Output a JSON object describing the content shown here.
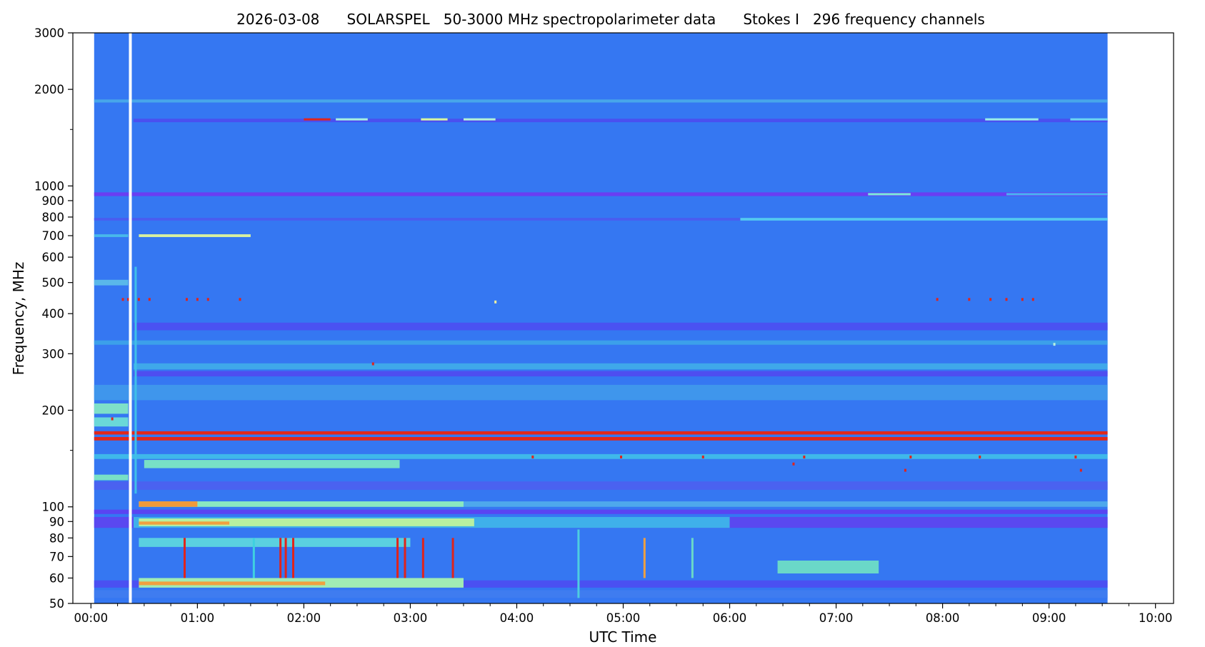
{
  "chart_data": {
    "type": "heatmap",
    "title": "2026-03-08      SOLARSPEL   50-3000 MHz spectropolarimeter data      Stokes I   296 frequency channels",
    "xlabel": "UTC Time",
    "ylabel": "Frequency, MHz",
    "x_axis": {
      "unit": "hours UTC",
      "range_hours": [
        -0.17,
        10.17
      ],
      "tick_hours": [
        0,
        1,
        2,
        3,
        4,
        5,
        6,
        7,
        8,
        9,
        10
      ],
      "tick_labels": [
        "00:00",
        "01:00",
        "02:00",
        "03:00",
        "04:00",
        "05:00",
        "06:00",
        "07:00",
        "08:00",
        "09:00",
        "10:00"
      ],
      "minor_step_hours": 0.25
    },
    "y_axis": {
      "scale": "log",
      "range_mhz": [
        50,
        3000
      ],
      "tick_values": [
        50,
        60,
        70,
        80,
        90,
        100,
        200,
        300,
        400,
        500,
        600,
        700,
        800,
        900,
        1000,
        2000,
        3000
      ],
      "tick_labels": [
        "50",
        "60",
        "70",
        "80",
        "90",
        "100",
        "200",
        "300",
        "400",
        "500",
        "600",
        "700",
        "800",
        "900",
        "1000",
        "2000",
        "3000"
      ],
      "minor_ticks": [
        150,
        1500
      ]
    },
    "data_extent": {
      "start_hours": 0.03,
      "end_hours": 9.55
    },
    "data_gap": {
      "at_hours": 0.37,
      "color": "#ffffff"
    },
    "colormap": "rainbow",
    "background_color": "#3577f2",
    "bands": [
      {
        "f_low": 1580,
        "f_high": 1620,
        "t_start": 0.4,
        "t_end": 9.55,
        "color": "#4a50f0"
      },
      {
        "f_low": 1600,
        "f_high": 1625,
        "t_start": 2.3,
        "t_end": 2.6,
        "color": "#a8f0e0"
      },
      {
        "f_low": 1600,
        "f_high": 1625,
        "t_start": 3.1,
        "t_end": 3.35,
        "color": "#d8f6a0"
      },
      {
        "f_low": 1600,
        "f_high": 1625,
        "t_start": 3.5,
        "t_end": 3.8,
        "color": "#b6f2d6"
      },
      {
        "f_low": 1600,
        "f_high": 1625,
        "t_start": 8.4,
        "t_end": 8.9,
        "color": "#9aeee8"
      },
      {
        "f_low": 1600,
        "f_high": 1625,
        "t_start": 9.2,
        "t_end": 9.55,
        "color": "#6cd6f2"
      },
      {
        "f_low": 1600,
        "f_high": 1625,
        "t_start": 2.0,
        "t_end": 2.25,
        "color": "#e0241c"
      },
      {
        "f_low": 1820,
        "f_high": 1860,
        "t_start": 0.03,
        "t_end": 9.55,
        "color": "#48a6ea"
      },
      {
        "f_low": 930,
        "f_high": 955,
        "t_start": 0.03,
        "t_end": 9.55,
        "color": "#6a3ef2"
      },
      {
        "f_low": 935,
        "f_high": 950,
        "t_start": 7.3,
        "t_end": 7.7,
        "color": "#7ce8d8"
      },
      {
        "f_low": 935,
        "f_high": 950,
        "t_start": 8.6,
        "t_end": 9.55,
        "color": "#48b4f0"
      },
      {
        "f_low": 780,
        "f_high": 795,
        "t_start": 0.03,
        "t_end": 9.55,
        "color": "#4a5cf0"
      },
      {
        "f_low": 780,
        "f_high": 795,
        "t_start": 6.1,
        "t_end": 9.55,
        "color": "#52caf0"
      },
      {
        "f_low": 693,
        "f_high": 707,
        "t_start": 0.03,
        "t_end": 0.35,
        "color": "#48b8ea"
      },
      {
        "f_low": 693,
        "f_high": 707,
        "t_start": 0.45,
        "t_end": 1.5,
        "color": "#d8f0a0"
      },
      {
        "f_low": 490,
        "f_high": 510,
        "t_start": 0.03,
        "t_end": 0.35,
        "color": "#5ab8ea"
      },
      {
        "f_low": 355,
        "f_high": 375,
        "t_start": 0.4,
        "t_end": 9.55,
        "color": "#4a52f2"
      },
      {
        "f_low": 320,
        "f_high": 330,
        "t_start": 0.03,
        "t_end": 9.55,
        "color": "#3ca0ea"
      },
      {
        "f_low": 268,
        "f_high": 280,
        "t_start": 0.4,
        "t_end": 9.55,
        "color": "#3fa8ea"
      },
      {
        "f_low": 255,
        "f_high": 265,
        "t_start": 0.4,
        "t_end": 9.55,
        "color": "#4e4ef0"
      },
      {
        "f_low": 215,
        "f_high": 240,
        "t_start": 0.03,
        "t_end": 9.55,
        "color": "#3f96ec"
      },
      {
        "f_low": 195,
        "f_high": 210,
        "t_start": 0.03,
        "t_end": 0.35,
        "color": "#7ee0c8"
      },
      {
        "f_low": 178,
        "f_high": 190,
        "t_start": 0.03,
        "t_end": 0.35,
        "color": "#6ad8d8"
      },
      {
        "f_low": 168,
        "f_high": 172,
        "t_start": 0.03,
        "t_end": 9.55,
        "color": "#e0281c"
      },
      {
        "f_low": 161,
        "f_high": 165,
        "t_start": 0.03,
        "t_end": 9.55,
        "color": "#e0281c"
      },
      {
        "f_low": 141,
        "f_high": 146,
        "t_start": 0.03,
        "t_end": 9.55,
        "color": "#3fb8ea"
      },
      {
        "f_low": 132,
        "f_high": 140,
        "t_start": 0.5,
        "t_end": 2.9,
        "color": "#78e0c6"
      },
      {
        "f_low": 121,
        "f_high": 126,
        "t_start": 0.03,
        "t_end": 0.35,
        "color": "#78e0c6"
      },
      {
        "f_low": 113,
        "f_high": 120,
        "t_start": 0.03,
        "t_end": 9.55,
        "color": "#4a62f0"
      },
      {
        "f_low": 100,
        "f_high": 104,
        "t_start": 0.45,
        "t_end": 9.55,
        "color": "#4ea8ec"
      },
      {
        "f_low": 100,
        "f_high": 104,
        "t_start": 0.45,
        "t_end": 3.5,
        "color": "#8ae8c0"
      },
      {
        "f_low": 100,
        "f_high": 104,
        "t_start": 0.45,
        "t_end": 1.0,
        "color": "#f09a3a"
      },
      {
        "f_low": 95,
        "f_high": 98,
        "t_start": 0.03,
        "t_end": 9.55,
        "color": "#5a44f2"
      },
      {
        "f_low": 86,
        "f_high": 93,
        "t_start": 0.03,
        "t_end": 9.55,
        "color": "#5a48f0"
      },
      {
        "f_low": 86,
        "f_high": 93,
        "t_start": 0.4,
        "t_end": 6.0,
        "color": "#3fb0ea"
      },
      {
        "f_low": 87,
        "f_high": 92,
        "t_start": 0.45,
        "t_end": 3.6,
        "color": "#b8f0a0"
      },
      {
        "f_low": 88,
        "f_high": 90,
        "t_start": 0.45,
        "t_end": 1.3,
        "color": "#f0a040"
      },
      {
        "f_low": 75,
        "f_high": 80,
        "t_start": 0.45,
        "t_end": 3.0,
        "color": "#5ad0e0"
      },
      {
        "f_low": 62,
        "f_high": 68,
        "t_start": 6.45,
        "t_end": 7.4,
        "color": "#6ad8c8"
      },
      {
        "f_low": 56,
        "f_high": 59,
        "t_start": 0.03,
        "t_end": 9.55,
        "color": "#4a50f2"
      },
      {
        "f_low": 56,
        "f_high": 60,
        "t_start": 0.45,
        "t_end": 3.5,
        "color": "#a0ecb4"
      },
      {
        "f_low": 57,
        "f_high": 58.5,
        "t_start": 0.45,
        "t_end": 2.2,
        "color": "#f0a040"
      },
      {
        "f_low": 52,
        "f_high": 55,
        "t_start": 0.03,
        "t_end": 9.55,
        "color": "#3f7cf0"
      }
    ],
    "bursts": [
      {
        "t": 0.88,
        "f_low": 60,
        "f_high": 80,
        "color": "#e0241c"
      },
      {
        "t": 1.53,
        "f_low": 60,
        "f_high": 80,
        "color": "#3fd0e0"
      },
      {
        "t": 1.78,
        "f_low": 60,
        "f_high": 80,
        "color": "#e0241c"
      },
      {
        "t": 1.83,
        "f_low": 60,
        "f_high": 80,
        "color": "#e0241c"
      },
      {
        "t": 1.9,
        "f_low": 60,
        "f_high": 80,
        "color": "#e0241c"
      },
      {
        "t": 2.88,
        "f_low": 60,
        "f_high": 80,
        "color": "#e0241c"
      },
      {
        "t": 2.95,
        "f_low": 60,
        "f_high": 80,
        "color": "#e0241c"
      },
      {
        "t": 3.12,
        "f_low": 60,
        "f_high": 80,
        "color": "#e0241c"
      },
      {
        "t": 3.4,
        "f_low": 60,
        "f_high": 80,
        "color": "#e0241c"
      },
      {
        "t": 4.58,
        "f_low": 52,
        "f_high": 85,
        "color": "#4ecde0"
      },
      {
        "t": 5.2,
        "f_low": 60,
        "f_high": 80,
        "color": "#f0a040"
      },
      {
        "t": 5.65,
        "f_low": 60,
        "f_high": 80,
        "color": "#6ad8c8"
      },
      {
        "t": 0.42,
        "f_low": 110,
        "f_high": 560,
        "color": "#3fc0e8"
      }
    ],
    "dots": [
      {
        "t": 0.3,
        "f": 443,
        "color": "#e0241c"
      },
      {
        "t": 0.35,
        "f": 443,
        "color": "#e0241c"
      },
      {
        "t": 0.45,
        "f": 443,
        "color": "#e0241c"
      },
      {
        "t": 0.55,
        "f": 443,
        "color": "#e0241c"
      },
      {
        "t": 0.9,
        "f": 443,
        "color": "#e0241c"
      },
      {
        "t": 1.0,
        "f": 443,
        "color": "#e0241c"
      },
      {
        "t": 1.1,
        "f": 443,
        "color": "#e0241c"
      },
      {
        "t": 1.4,
        "f": 443,
        "color": "#e0241c"
      },
      {
        "t": 7.95,
        "f": 443,
        "color": "#e0241c"
      },
      {
        "t": 8.25,
        "f": 443,
        "color": "#e0241c"
      },
      {
        "t": 8.45,
        "f": 443,
        "color": "#e0241c"
      },
      {
        "t": 8.6,
        "f": 443,
        "color": "#e0241c"
      },
      {
        "t": 8.75,
        "f": 443,
        "color": "#e0241c"
      },
      {
        "t": 8.85,
        "f": 443,
        "color": "#e0241c"
      },
      {
        "t": 2.65,
        "f": 279,
        "color": "#e0241c"
      },
      {
        "t": 0.2,
        "f": 188,
        "color": "#e0241c"
      },
      {
        "t": 4.15,
        "f": 143,
        "color": "#e0241c"
      },
      {
        "t": 4.98,
        "f": 143,
        "color": "#e0241c"
      },
      {
        "t": 5.75,
        "f": 143,
        "color": "#e0241c"
      },
      {
        "t": 6.7,
        "f": 143,
        "color": "#e0241c"
      },
      {
        "t": 7.7,
        "f": 143,
        "color": "#e0241c"
      },
      {
        "t": 8.35,
        "f": 143,
        "color": "#e0241c"
      },
      {
        "t": 9.25,
        "f": 143,
        "color": "#e0241c"
      },
      {
        "t": 9.3,
        "f": 130,
        "color": "#e0241c"
      },
      {
        "t": 7.65,
        "f": 130,
        "color": "#e0241c"
      },
      {
        "t": 6.6,
        "f": 136,
        "color": "#e0241c"
      },
      {
        "t": 3.8,
        "f": 435,
        "color": "#f0f0a0"
      },
      {
        "t": 9.05,
        "f": 321,
        "color": "#b8f0e0"
      }
    ]
  }
}
